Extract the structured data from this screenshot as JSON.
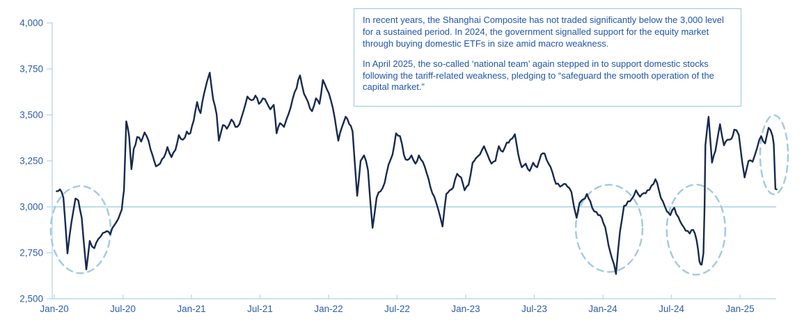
{
  "annotation": {
    "p1": "In recent years, the Shanghai Composite has not traded significantly below the 3,000 level for a sustained period. In 2024, the government signalled support for the equity market through buying domestic ETFs in size amid macro weakness.",
    "p2": "In April 2025, the so-called ‘national team’ again stepped in to support domestic stocks following the tariff-related weakness, pledging to “safeguard the smooth operation of the capital market.”"
  },
  "chart_data": {
    "type": "line",
    "title": "",
    "xlabel": "",
    "ylabel": "",
    "grid": false,
    "legend": "none",
    "y_axis": {
      "min": 2500,
      "max": 4000,
      "step": 250,
      "ticks": [
        {
          "value": 4000,
          "label": "4,000"
        },
        {
          "value": 3750,
          "label": "3,750"
        },
        {
          "value": 3500,
          "label": "3,500"
        },
        {
          "value": 3250,
          "label": "3,250"
        },
        {
          "value": 3000,
          "label": "3,000"
        },
        {
          "value": 2750,
          "label": "2,750"
        },
        {
          "value": 2500,
          "label": "2,500"
        }
      ]
    },
    "x_axis": {
      "unit": "months_since_Jan_2020",
      "min_t": 0,
      "max_t": 63.2,
      "ticks": [
        {
          "t": 0,
          "label": "Jan-20"
        },
        {
          "t": 6,
          "label": "Jul-20"
        },
        {
          "t": 12,
          "label": "Jan-21"
        },
        {
          "t": 18,
          "label": "Jul-21"
        },
        {
          "t": 24,
          "label": "Jan-22"
        },
        {
          "t": 30,
          "label": "Jul-22"
        },
        {
          "t": 36,
          "label": "Jan-23"
        },
        {
          "t": 42,
          "label": "Jul-23"
        },
        {
          "t": 48,
          "label": "Jan-24"
        },
        {
          "t": 54,
          "label": "Jul-24"
        },
        {
          "t": 60,
          "label": "Jan-25"
        }
      ]
    },
    "reference_line": {
      "value": 3000
    },
    "series": [
      {
        "name": "Shanghai Composite",
        "points": [
          [
            0.2,
            3085
          ],
          [
            0.5,
            3095
          ],
          [
            0.8,
            3050
          ],
          [
            1.15,
            2747
          ],
          [
            1.5,
            2915
          ],
          [
            1.85,
            3045
          ],
          [
            2.1,
            3035
          ],
          [
            2.4,
            2940
          ],
          [
            2.8,
            2660
          ],
          [
            3.1,
            2815
          ],
          [
            3.5,
            2775
          ],
          [
            3.85,
            2825
          ],
          [
            4.25,
            2858
          ],
          [
            4.6,
            2868
          ],
          [
            4.9,
            2850
          ],
          [
            5.25,
            2900
          ],
          [
            5.6,
            2935
          ],
          [
            5.9,
            2985
          ],
          [
            6.1,
            3090
          ],
          [
            6.3,
            3465
          ],
          [
            6.55,
            3385
          ],
          [
            6.75,
            3205
          ],
          [
            6.95,
            3315
          ],
          [
            7.25,
            3380
          ],
          [
            7.6,
            3355
          ],
          [
            7.9,
            3405
          ],
          [
            8.25,
            3360
          ],
          [
            8.6,
            3280
          ],
          [
            8.9,
            3220
          ],
          [
            9.25,
            3235
          ],
          [
            9.6,
            3270
          ],
          [
            9.9,
            3325
          ],
          [
            10.25,
            3270
          ],
          [
            10.6,
            3310
          ],
          [
            10.9,
            3390
          ],
          [
            11.25,
            3365
          ],
          [
            11.6,
            3410
          ],
          [
            11.9,
            3400
          ],
          [
            12.2,
            3470
          ],
          [
            12.5,
            3570
          ],
          [
            12.8,
            3510
          ],
          [
            13.1,
            3615
          ],
          [
            13.6,
            3730
          ],
          [
            13.9,
            3585
          ],
          [
            14.2,
            3505
          ],
          [
            14.4,
            3360
          ],
          [
            14.75,
            3445
          ],
          [
            15.1,
            3425
          ],
          [
            15.5,
            3475
          ],
          [
            15.85,
            3435
          ],
          [
            16.2,
            3450
          ],
          [
            16.55,
            3520
          ],
          [
            16.9,
            3600
          ],
          [
            17.25,
            3580
          ],
          [
            17.6,
            3605
          ],
          [
            17.9,
            3560
          ],
          [
            18.25,
            3590
          ],
          [
            18.6,
            3565
          ],
          [
            18.9,
            3530
          ],
          [
            19.2,
            3555
          ],
          [
            19.45,
            3400
          ],
          [
            19.75,
            3455
          ],
          [
            20.1,
            3435
          ],
          [
            20.5,
            3505
          ],
          [
            20.85,
            3585
          ],
          [
            21.2,
            3645
          ],
          [
            21.5,
            3715
          ],
          [
            21.85,
            3615
          ],
          [
            22.2,
            3570
          ],
          [
            22.55,
            3520
          ],
          [
            22.9,
            3590
          ],
          [
            23.2,
            3560
          ],
          [
            23.5,
            3690
          ],
          [
            23.85,
            3640
          ],
          [
            24.2,
            3580
          ],
          [
            24.55,
            3480
          ],
          [
            24.85,
            3360
          ],
          [
            25.15,
            3430
          ],
          [
            25.5,
            3490
          ],
          [
            25.8,
            3450
          ],
          [
            26.1,
            3410
          ],
          [
            26.5,
            3060
          ],
          [
            26.8,
            3250
          ],
          [
            27.1,
            3280
          ],
          [
            27.45,
            3200
          ],
          [
            27.85,
            2886
          ],
          [
            28.2,
            3050
          ],
          [
            28.55,
            3085
          ],
          [
            28.9,
            3130
          ],
          [
            29.25,
            3230
          ],
          [
            29.6,
            3285
          ],
          [
            29.9,
            3400
          ],
          [
            30.25,
            3385
          ],
          [
            30.6,
            3280
          ],
          [
            30.9,
            3255
          ],
          [
            31.25,
            3280
          ],
          [
            31.6,
            3235
          ],
          [
            31.9,
            3280
          ],
          [
            32.25,
            3245
          ],
          [
            32.6,
            3180
          ],
          [
            32.9,
            3110
          ],
          [
            33.25,
            3055
          ],
          [
            33.6,
            2985
          ],
          [
            33.97,
            2893
          ],
          [
            34.3,
            3070
          ],
          [
            34.6,
            3090
          ],
          [
            34.9,
            3105
          ],
          [
            35.25,
            3180
          ],
          [
            35.6,
            3160
          ],
          [
            35.9,
            3090
          ],
          [
            36.25,
            3120
          ],
          [
            36.6,
            3240
          ],
          [
            36.9,
            3265
          ],
          [
            37.25,
            3285
          ],
          [
            37.6,
            3330
          ],
          [
            37.9,
            3285
          ],
          [
            38.25,
            3235
          ],
          [
            38.6,
            3250
          ],
          [
            38.9,
            3330
          ],
          [
            39.25,
            3300
          ],
          [
            39.6,
            3350
          ],
          [
            39.9,
            3365
          ],
          [
            40.3,
            3395
          ],
          [
            40.6,
            3285
          ],
          [
            40.9,
            3215
          ],
          [
            41.25,
            3235
          ],
          [
            41.6,
            3195
          ],
          [
            41.9,
            3240
          ],
          [
            42.25,
            3215
          ],
          [
            42.6,
            3285
          ],
          [
            42.9,
            3290
          ],
          [
            43.25,
            3235
          ],
          [
            43.6,
            3185
          ],
          [
            43.9,
            3125
          ],
          [
            44.25,
            3110
          ],
          [
            44.6,
            3125
          ],
          [
            44.9,
            3110
          ],
          [
            45.25,
            3080
          ],
          [
            45.7,
            2940
          ],
          [
            45.95,
            3020
          ],
          [
            46.25,
            3040
          ],
          [
            46.6,
            3070
          ],
          [
            46.9,
            3030
          ],
          [
            47.25,
            2975
          ],
          [
            47.6,
            2955
          ],
          [
            47.9,
            2940
          ],
          [
            48.2,
            2890
          ],
          [
            48.5,
            2790
          ],
          [
            48.8,
            2720
          ],
          [
            49.15,
            2635
          ],
          [
            49.5,
            2865
          ],
          [
            49.85,
            3005
          ],
          [
            50.2,
            3030
          ],
          [
            50.55,
            3045
          ],
          [
            50.9,
            3090
          ],
          [
            51.25,
            3055
          ],
          [
            51.6,
            3075
          ],
          [
            51.9,
            3090
          ],
          [
            52.25,
            3115
          ],
          [
            52.6,
            3150
          ],
          [
            52.9,
            3090
          ],
          [
            53.25,
            3030
          ],
          [
            53.6,
            2975
          ],
          [
            53.9,
            2955
          ],
          [
            54.25,
            2995
          ],
          [
            54.6,
            2945
          ],
          [
            54.9,
            2905
          ],
          [
            55.25,
            2870
          ],
          [
            55.6,
            2855
          ],
          [
            55.9,
            2875
          ],
          [
            56.2,
            2820
          ],
          [
            56.45,
            2704
          ],
          [
            56.65,
            2686
          ],
          [
            56.8,
            2748
          ],
          [
            56.9,
            3000
          ],
          [
            56.97,
            3336
          ],
          [
            57.25,
            3490
          ],
          [
            57.55,
            3240
          ],
          [
            57.85,
            3305
          ],
          [
            58.25,
            3450
          ],
          [
            58.6,
            3335
          ],
          [
            58.9,
            3365
          ],
          [
            59.25,
            3370
          ],
          [
            59.5,
            3420
          ],
          [
            59.9,
            3390
          ],
          [
            60.2,
            3240
          ],
          [
            60.4,
            3160
          ],
          [
            60.75,
            3250
          ],
          [
            61.1,
            3245
          ],
          [
            61.5,
            3320
          ],
          [
            61.85,
            3385
          ],
          [
            62.2,
            3345
          ],
          [
            62.5,
            3430
          ],
          [
            62.85,
            3385
          ],
          [
            62.95,
            3342
          ],
          [
            63.1,
            3097
          ],
          [
            63.2,
            3095
          ]
        ]
      }
    ],
    "callouts": [
      {
        "shape": "dashed-ellipse",
        "t_center": 2.31,
        "v_center": 2876,
        "t_radius": 2.62,
        "v_radius": 237
      },
      {
        "shape": "dashed-ellipse",
        "t_center": 48.55,
        "v_center": 2883,
        "t_radius": 2.92,
        "v_radius": 237
      },
      {
        "shape": "dashed-ellipse",
        "t_center": 56.15,
        "v_center": 2876,
        "t_radius": 2.56,
        "v_radius": 245
      },
      {
        "shape": "dashed-ellipse",
        "t_center": 62.98,
        "v_center": 3283,
        "t_radius": 1.22,
        "v_radius": 215
      }
    ],
    "colors": {
      "line": "#17294E",
      "axis_label": "#2A5CAD",
      "axis_line": "#BDD7EE",
      "reference_line": "#A9D2E0",
      "callout": "#A3CBE1",
      "box_border": "#9DC3E6",
      "box_text": "#2155AD"
    }
  }
}
